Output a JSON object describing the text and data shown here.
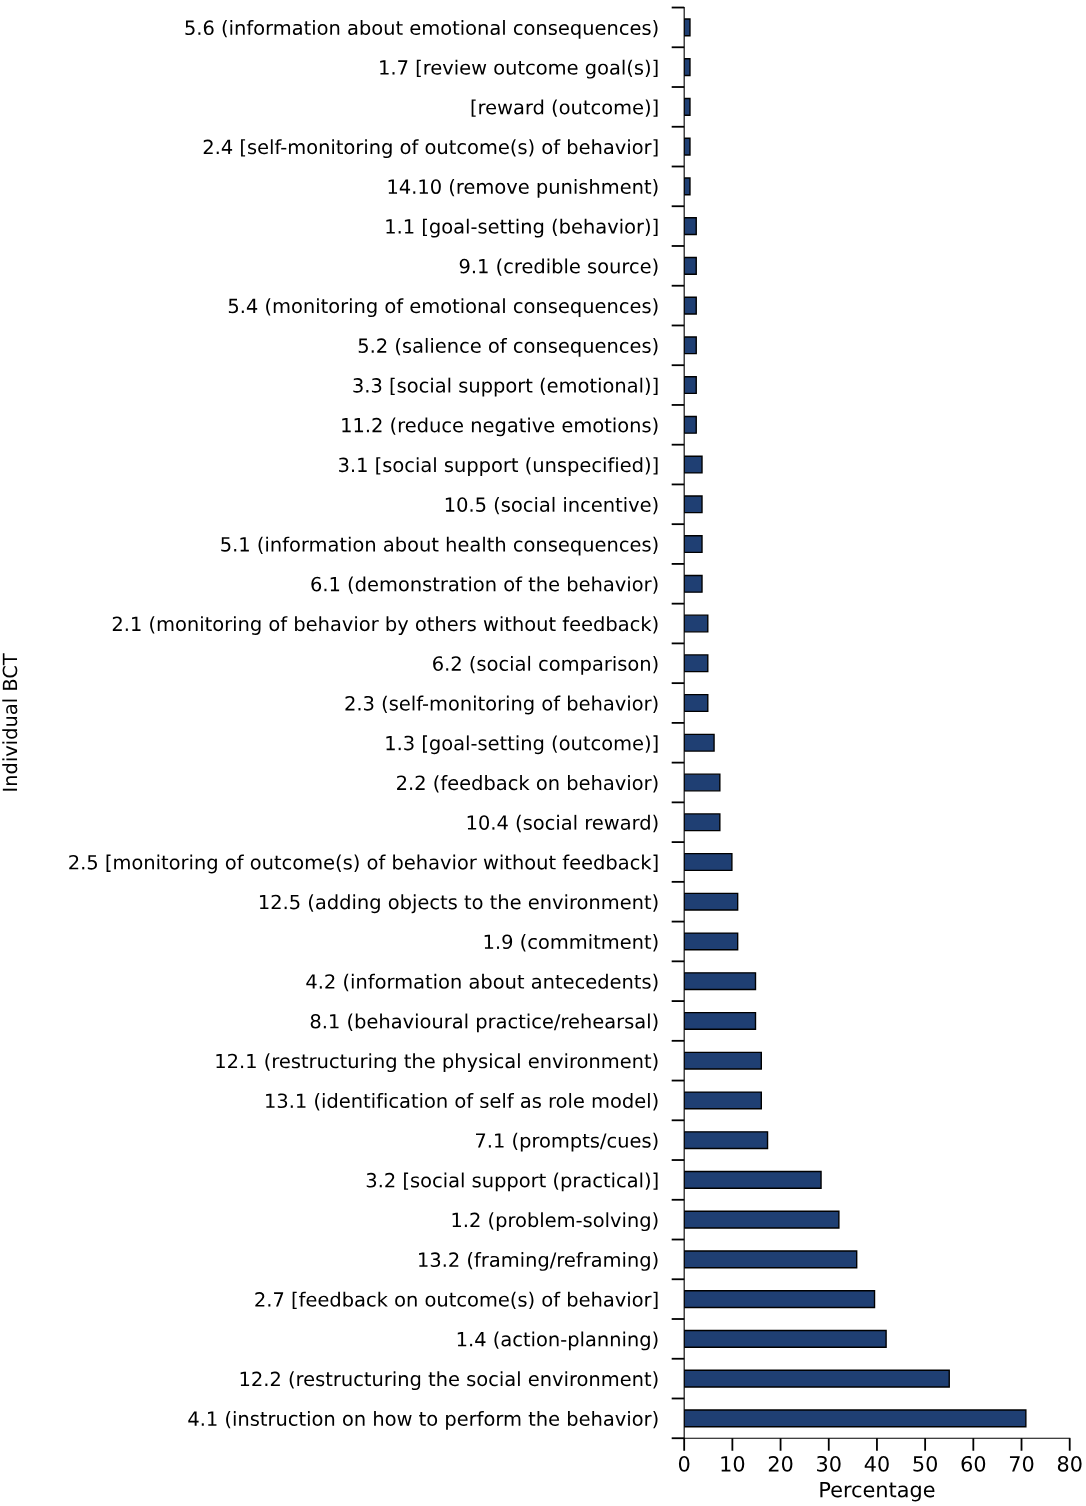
{
  "chart_data": {
    "type": "bar",
    "orientation": "horizontal",
    "xlabel": "Percentage",
    "ylabel": "Individual BCT",
    "color": "#1f3f73",
    "categories": [
      "5.6 (information about emotional consequences)",
      "1.7 [review outcome goal(s)]",
      "[reward (outcome)]",
      "2.4 [self-monitoring of outcome(s) of behavior]",
      "14.10 (remove punishment)",
      "1.1 [goal-setting (behavior)]",
      "9.1 (credible source)",
      "5.4 (monitoring of emotional consequences)",
      "5.2 (salience of consequences)",
      "3.3 [social support (emotional)]",
      "11.2 (reduce negative emotions)",
      "3.1 [social support (unspecified)]",
      "10.5 (social incentive)",
      "5.1 (information about health consequences)",
      "6.1 (demonstration of the behavior)",
      "2.1 (monitoring of behavior by others without feedback)",
      "6.2 (social comparison)",
      "2.3 (self-monitoring of behavior)",
      "1.3 [goal-setting (outcome)]",
      "2.2 (feedback on behavior)",
      "10.4 (social reward)",
      "2.5 [monitoring of outcome(s) of behavior without feedback]",
      "12.5 (adding objects to the environment)",
      "1.9 (commitment)",
      "4.2 (information about antecedents)",
      "8.1 (behavioural practice/rehearsal)",
      "12.1 (restructuring the physical environment)",
      "13.1 (identification of self as role model)",
      "7.1 (prompts/cues)",
      "3.2 [social support (practical)]",
      "1.2 (problem-solving)",
      "13.2 (framing/reframing)",
      "2.7 [feedback on outcome(s) of behavior]",
      "1.4 (action-planning)",
      "12.2 (restructuring the social environment)",
      "4.1 (instruction on how to perform the behavior)"
    ],
    "values": [
      1.2,
      1.2,
      1.2,
      1.2,
      1.2,
      2.5,
      2.5,
      2.5,
      2.5,
      2.5,
      2.5,
      3.7,
      3.7,
      3.7,
      3.7,
      4.9,
      4.9,
      4.9,
      6.2,
      7.4,
      7.4,
      9.9,
      11.1,
      11.1,
      14.8,
      14.8,
      16.0,
      16.0,
      17.3,
      28.4,
      32.1,
      35.8,
      39.5,
      41.9,
      55.0,
      70.9
    ],
    "xlim": [
      0,
      80
    ],
    "xticks": [
      0,
      10,
      20,
      30,
      40,
      50,
      60,
      70,
      80
    ],
    "grid": false,
    "legend": false
  }
}
